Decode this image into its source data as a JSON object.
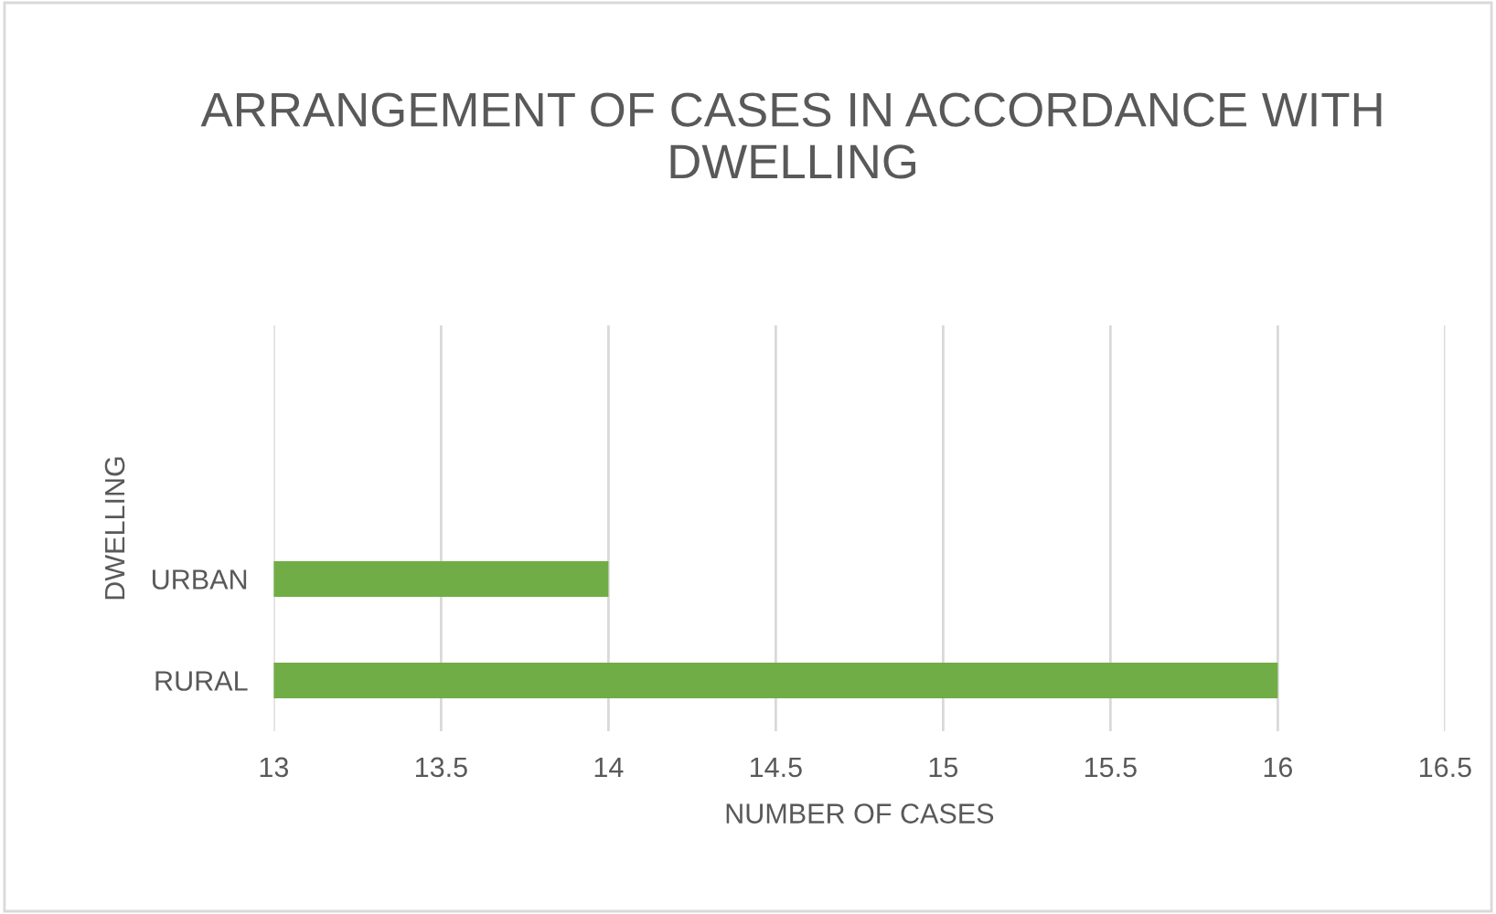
{
  "chart_data": {
    "type": "bar",
    "orientation": "horizontal",
    "title": "ARRANGEMENT OF CASES IN ACCORDANCE WITH DWELLING",
    "xlabel": "NUMBER OF CASES",
    "ylabel": "DWELLING",
    "categories": [
      null,
      null,
      "URBAN",
      "RURAL"
    ],
    "values": [
      null,
      null,
      14,
      16
    ],
    "color": "#70ad47",
    "xlim": [
      13,
      16.5
    ],
    "xticks": [
      13,
      13.5,
      14,
      14.5,
      15,
      15.5,
      16,
      16.5
    ],
    "grid": "x"
  }
}
